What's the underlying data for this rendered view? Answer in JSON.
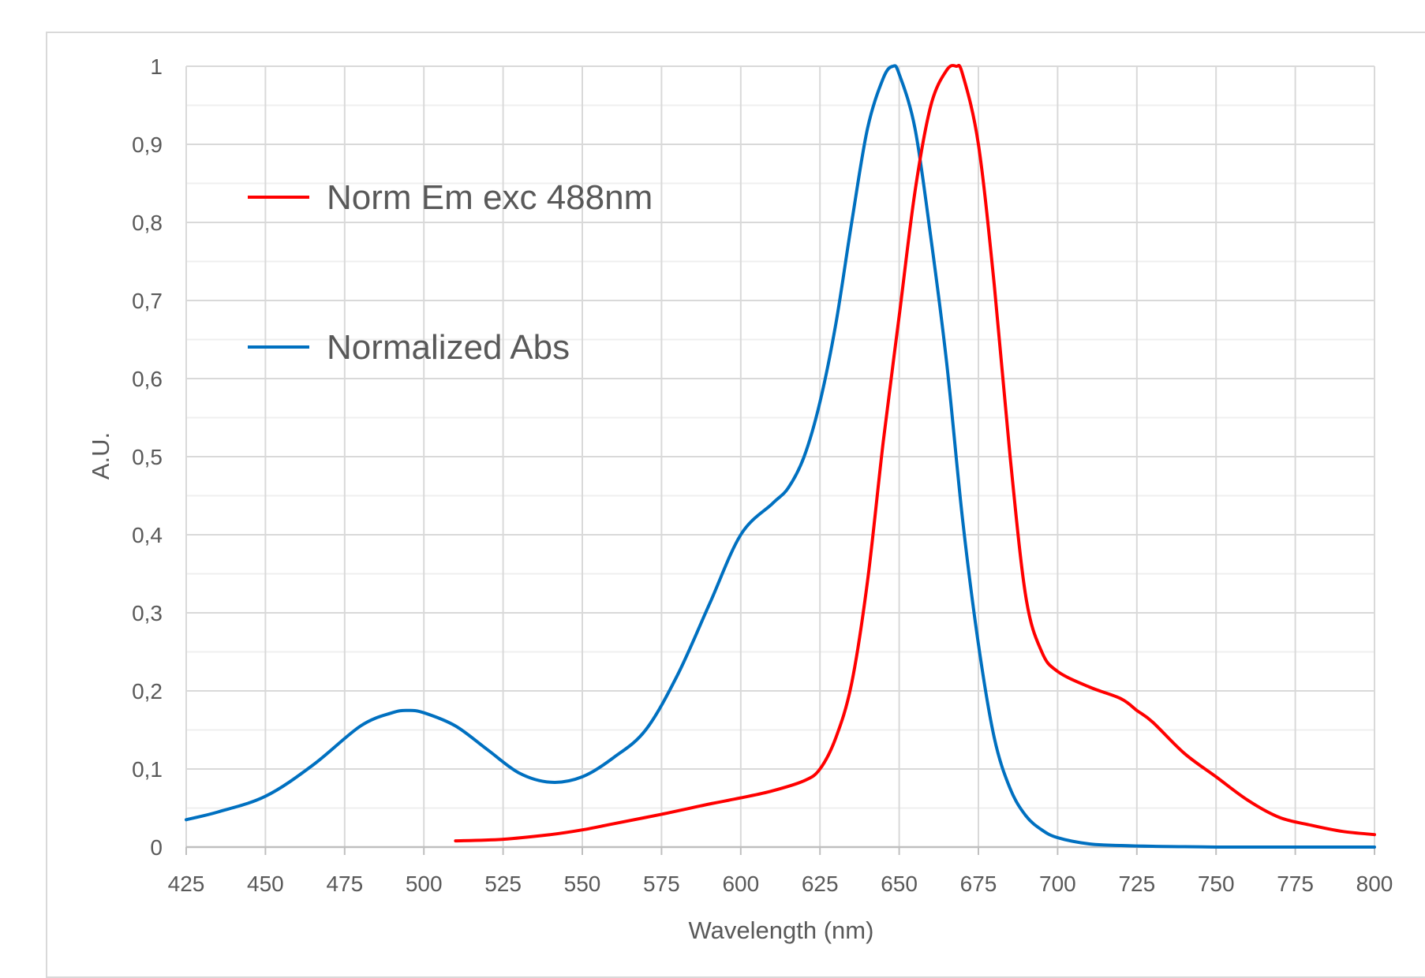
{
  "chart_data": {
    "type": "line",
    "title": "",
    "xlabel": "Wavelength (nm)",
    "ylabel": "A.U.",
    "xlim": [
      425,
      800
    ],
    "ylim": [
      0,
      1
    ],
    "x_ticks": [
      425,
      450,
      475,
      500,
      525,
      550,
      575,
      600,
      625,
      650,
      675,
      700,
      725,
      750,
      775,
      800
    ],
    "y_ticks": [
      0,
      0.1,
      0.2,
      0.3,
      0.4,
      0.5,
      0.6,
      0.7,
      0.8,
      0.9,
      1
    ],
    "y_tick_labels": [
      "0",
      "0,1",
      "0,2",
      "0,3",
      "0,4",
      "0,5",
      "0,6",
      "0,7",
      "0,8",
      "0,9",
      "1"
    ],
    "grid": true,
    "legend_position": "top-left",
    "series": [
      {
        "name": "Norm Em exc 488nm",
        "color": "#ff0000",
        "x": [
          510,
          525,
          540,
          550,
          560,
          575,
          590,
          600,
          610,
          620,
          625,
          630,
          635,
          640,
          645,
          650,
          655,
          660,
          665,
          668,
          670,
          675,
          680,
          685,
          690,
          695,
          700,
          710,
          720,
          725,
          730,
          740,
          750,
          760,
          770,
          780,
          790,
          800
        ],
        "y": [
          0.008,
          0.01,
          0.016,
          0.022,
          0.03,
          0.042,
          0.055,
          0.063,
          0.072,
          0.085,
          0.1,
          0.14,
          0.21,
          0.34,
          0.52,
          0.68,
          0.84,
          0.95,
          0.995,
          1.0,
          0.99,
          0.9,
          0.72,
          0.5,
          0.32,
          0.25,
          0.225,
          0.205,
          0.19,
          0.175,
          0.16,
          0.12,
          0.09,
          0.06,
          0.038,
          0.028,
          0.02,
          0.016
        ]
      },
      {
        "name": "Normalized Abs",
        "color": "#0070c0",
        "x": [
          425,
          435,
          450,
          465,
          480,
          490,
          495,
          500,
          510,
          520,
          530,
          540,
          550,
          560,
          570,
          580,
          590,
          600,
          610,
          615,
          620,
          625,
          630,
          635,
          640,
          645,
          648,
          650,
          655,
          660,
          665,
          670,
          675,
          680,
          685,
          690,
          695,
          700,
          710,
          720,
          730,
          740,
          750,
          760,
          780,
          800
        ],
        "y": [
          0.035,
          0.045,
          0.065,
          0.105,
          0.155,
          0.172,
          0.175,
          0.172,
          0.155,
          0.125,
          0.095,
          0.083,
          0.09,
          0.115,
          0.15,
          0.22,
          0.31,
          0.4,
          0.44,
          0.46,
          0.5,
          0.57,
          0.67,
          0.8,
          0.92,
          0.985,
          1.0,
          0.99,
          0.92,
          0.78,
          0.62,
          0.42,
          0.26,
          0.14,
          0.075,
          0.04,
          0.022,
          0.012,
          0.004,
          0.002,
          0.001,
          0.0005,
          0.0,
          0.0,
          0.0,
          0.0
        ]
      }
    ]
  }
}
